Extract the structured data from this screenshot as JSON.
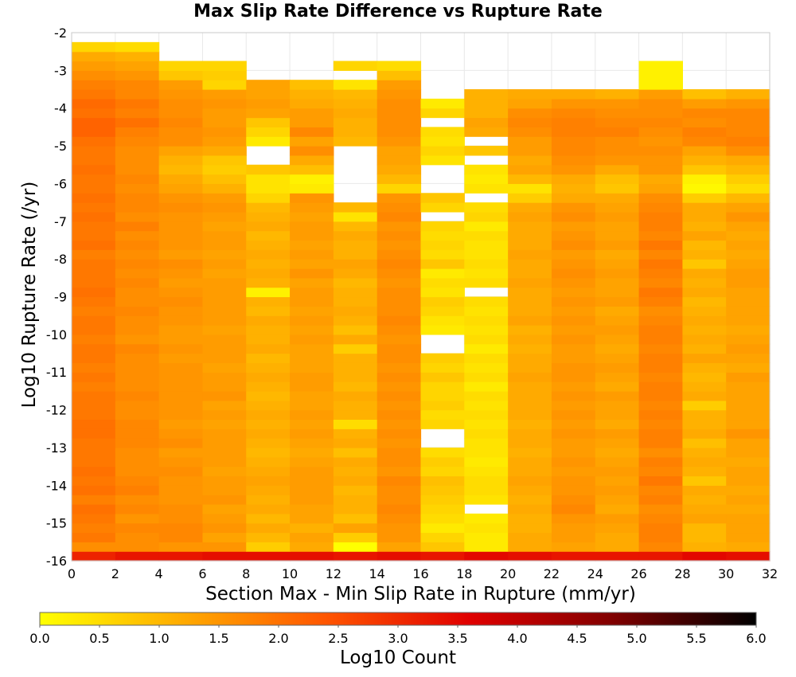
{
  "chart_data": {
    "type": "heatmap",
    "title": "Max Slip Rate Difference vs Rupture Rate",
    "xlabel": "Section Max - Min Slip Rate in Rupture (mm/yr)",
    "ylabel": "Log10 Rupture Rate (/yr)",
    "xlim": [
      0,
      32
    ],
    "ylim": [
      -16,
      -2
    ],
    "x_ticks": [
      0,
      2,
      4,
      6,
      8,
      10,
      12,
      14,
      16,
      18,
      20,
      22,
      24,
      26,
      28,
      30,
      32
    ],
    "y_ticks": [
      -16,
      -15,
      -14,
      -13,
      -12,
      -11,
      -10,
      -9,
      -8,
      -7,
      -6,
      -5,
      -4,
      -3,
      -2
    ],
    "x_bin_width": 2,
    "y_bin_width": 0.25,
    "y_bins_start": -16,
    "colorbar": {
      "label": "Log10 Count",
      "range": [
        0,
        6
      ],
      "ticks": [
        "0.0",
        "0.5",
        "1.0",
        "1.5",
        "2.0",
        "2.5",
        "3.0",
        "3.5",
        "4.0",
        "4.5",
        "5.0",
        "5.5",
        "6.0"
      ],
      "colors": [
        "#ffff00",
        "#ffaa00",
        "#ff5500",
        "#e00000",
        "#800000",
        "#000000"
      ]
    },
    "grid": true,
    "values": [
      [
        3.1,
        3.3,
        3.3,
        3.4,
        3.4,
        3.4,
        3.3,
        3.4,
        3.3,
        3.5,
        3.4,
        3.3,
        3.3,
        3.3,
        3.5,
        3.4
      ],
      [
        1.6,
        1.6,
        1.5,
        1.5,
        0.7,
        1.2,
        0.0,
        1.3,
        0.8,
        0.3,
        1.2,
        1.3,
        1.2,
        1.7,
        1.1,
        1.2
      ],
      [
        1.9,
        1.6,
        1.7,
        1.3,
        1.0,
        1.3,
        0.7,
        1.5,
        0.6,
        0.3,
        1.2,
        1.4,
        1.2,
        1.8,
        1.0,
        1.3
      ],
      [
        1.8,
        1.7,
        1.7,
        1.5,
        1.2,
        1.1,
        1.3,
        1.5,
        0.3,
        0.4,
        1.1,
        1.4,
        1.3,
        1.8,
        1.0,
        1.3
      ],
      [
        1.9,
        1.5,
        1.6,
        1.4,
        1.0,
        1.3,
        0.9,
        1.6,
        0.5,
        0.3,
        1.1,
        1.5,
        1.4,
        1.7,
        1.3,
        1.3
      ],
      [
        2.0,
        1.7,
        1.6,
        1.3,
        1.2,
        1.3,
        1.1,
        1.7,
        0.6,
        null,
        1.2,
        1.7,
        1.2,
        1.6,
        1.2,
        1.2
      ],
      [
        1.8,
        1.6,
        1.5,
        1.5,
        1.1,
        1.4,
        1.1,
        1.6,
        0.7,
        0.4,
        1.1,
        1.6,
        1.3,
        1.8,
        1.1,
        1.3
      ],
      [
        2.0,
        1.8,
        1.5,
        1.4,
        1.2,
        1.4,
        1.0,
        1.6,
        0.8,
        0.5,
        1.2,
        1.5,
        1.4,
        1.7,
        1.2,
        1.2
      ],
      [
        1.9,
        1.7,
        1.5,
        1.4,
        1.3,
        1.4,
        1.2,
        1.7,
        0.9,
        0.5,
        1.3,
        1.5,
        1.3,
        1.9,
        0.8,
        1.3
      ],
      [
        2.0,
        1.6,
        1.6,
        1.3,
        1.2,
        1.4,
        1.1,
        1.5,
        0.6,
        0.4,
        1.2,
        1.4,
        1.4,
        1.7,
        1.1,
        1.3
      ],
      [
        1.9,
        1.6,
        1.5,
        1.4,
        1.1,
        1.3,
        1.2,
        1.6,
        0.7,
        0.3,
        1.2,
        1.5,
        1.3,
        1.8,
        1.2,
        1.2
      ],
      [
        1.9,
        1.6,
        1.4,
        1.4,
        1.0,
        1.2,
        0.9,
        1.6,
        0.5,
        0.4,
        1.1,
        1.4,
        1.2,
        1.6,
        1.1,
        1.3
      ],
      [
        1.9,
        1.7,
        1.6,
        1.4,
        1.1,
        1.3,
        1.2,
        1.5,
        null,
        0.4,
        1.2,
        1.4,
        1.3,
        1.8,
        0.9,
        1.3
      ],
      [
        2.0,
        1.7,
        1.5,
        1.4,
        1.2,
        1.4,
        1.1,
        1.6,
        null,
        0.5,
        1.2,
        1.5,
        1.4,
        1.8,
        1.2,
        1.5
      ],
      [
        2.0,
        1.7,
        1.4,
        1.3,
        1.1,
        1.3,
        0.5,
        1.5,
        0.6,
        0.4,
        1.1,
        1.4,
        1.2,
        1.7,
        1.1,
        1.3
      ],
      [
        1.9,
        1.6,
        1.5,
        1.4,
        1.2,
        1.4,
        1.1,
        1.6,
        0.5,
        0.5,
        1.2,
        1.5,
        1.3,
        1.8,
        1.1,
        1.3
      ],
      [
        1.9,
        1.6,
        1.5,
        1.3,
        1.1,
        1.3,
        1.1,
        1.5,
        0.7,
        0.4,
        1.2,
        1.4,
        1.3,
        1.7,
        0.7,
        1.3
      ],
      [
        1.9,
        1.7,
        1.5,
        1.5,
        1.0,
        1.3,
        1.2,
        1.6,
        0.6,
        0.5,
        1.2,
        1.5,
        1.4,
        1.8,
        1.2,
        1.3
      ],
      [
        1.8,
        1.6,
        1.5,
        1.4,
        1.1,
        1.4,
        1.0,
        1.5,
        0.6,
        0.3,
        1.2,
        1.4,
        1.2,
        1.8,
        1.1,
        1.3
      ],
      [
        1.9,
        1.6,
        1.5,
        1.4,
        1.2,
        1.4,
        1.1,
        1.6,
        0.8,
        0.5,
        1.3,
        1.5,
        1.3,
        1.7,
        1.0,
        1.4
      ],
      [
        1.8,
        1.6,
        1.5,
        1.3,
        1.1,
        1.3,
        1.1,
        1.5,
        0.6,
        0.4,
        1.2,
        1.5,
        1.4,
        1.8,
        1.1,
        1.2
      ],
      [
        1.9,
        1.6,
        1.4,
        1.4,
        1.0,
        1.3,
        1.1,
        1.6,
        0.7,
        0.5,
        1.2,
        1.4,
        1.3,
        1.8,
        1.3,
        1.3
      ],
      [
        1.9,
        1.7,
        1.5,
        1.4,
        1.2,
        1.3,
        0.7,
        1.6,
        null,
        0.3,
        1.1,
        1.4,
        1.2,
        1.7,
        1.1,
        1.4
      ],
      [
        1.8,
        1.5,
        1.4,
        1.4,
        1.1,
        1.4,
        1.2,
        1.5,
        null,
        0.5,
        1.2,
        1.5,
        1.3,
        1.8,
        1.2,
        1.3
      ],
      [
        1.9,
        1.6,
        1.4,
        1.3,
        1.1,
        1.3,
        0.9,
        1.6,
        0.3,
        0.4,
        1.1,
        1.4,
        1.4,
        1.8,
        1.1,
        1.2
      ],
      [
        1.9,
        1.6,
        1.5,
        1.4,
        1.2,
        1.4,
        1.1,
        1.7,
        0.4,
        0.5,
        1.3,
        1.5,
        1.3,
        1.7,
        1.2,
        1.3
      ],
      [
        1.8,
        1.7,
        1.5,
        1.4,
        1.0,
        1.3,
        1.2,
        1.6,
        0.6,
        0.4,
        1.2,
        1.4,
        1.2,
        1.6,
        1.1,
        1.3
      ],
      [
        1.9,
        1.6,
        1.6,
        1.4,
        1.1,
        1.4,
        1.1,
        1.6,
        0.7,
        0.5,
        1.2,
        1.5,
        1.4,
        1.8,
        1.0,
        1.3
      ],
      [
        2.0,
        1.6,
        1.5,
        1.4,
        0.2,
        1.4,
        1.1,
        1.6,
        0.4,
        null,
        1.2,
        1.4,
        1.3,
        1.9,
        1.2,
        1.3
      ],
      [
        1.9,
        1.7,
        1.4,
        1.4,
        1.1,
        1.3,
        1.0,
        1.5,
        0.5,
        0.5,
        1.3,
        1.5,
        1.3,
        1.7,
        1.1,
        1.4
      ],
      [
        1.9,
        1.6,
        1.5,
        1.3,
        1.2,
        1.5,
        1.2,
        1.6,
        0.3,
        0.4,
        1.2,
        1.6,
        1.4,
        1.8,
        1.2,
        1.4
      ],
      [
        1.9,
        1.7,
        1.6,
        1.4,
        1.1,
        1.3,
        1.3,
        1.7,
        0.8,
        0.5,
        1.2,
        1.5,
        1.3,
        1.9,
        0.8,
        1.3
      ],
      [
        1.8,
        1.6,
        1.4,
        1.3,
        1.2,
        1.4,
        1.1,
        1.6,
        0.5,
        0.4,
        1.3,
        1.4,
        1.2,
        1.7,
        1.1,
        1.2
      ],
      [
        2.0,
        1.7,
        1.5,
        1.4,
        1.1,
        1.3,
        1.1,
        1.5,
        0.6,
        0.4,
        1.2,
        1.6,
        1.4,
        1.9,
        1.0,
        1.3
      ],
      [
        1.9,
        1.6,
        1.5,
        1.4,
        1.0,
        1.4,
        1.2,
        1.6,
        0.5,
        0.5,
        1.2,
        1.5,
        1.3,
        1.7,
        1.3,
        1.2
      ],
      [
        1.9,
        1.8,
        1.5,
        1.3,
        1.2,
        1.4,
        1.0,
        1.5,
        0.6,
        0.3,
        1.2,
        1.4,
        1.3,
        1.8,
        1.1,
        1.3
      ],
      [
        2.0,
        1.6,
        1.5,
        1.4,
        1.1,
        1.3,
        0.4,
        1.7,
        null,
        0.6,
        1.3,
        1.6,
        1.4,
        1.8,
        1.2,
        1.5
      ],
      [
        1.9,
        1.7,
        1.6,
        1.5,
        1.0,
        1.4,
        1.0,
        1.6,
        0.6,
        0.5,
        1.2,
        1.5,
        1.3,
        1.7,
        1.2,
        1.3
      ],
      [
        2.0,
        1.7,
        1.5,
        1.4,
        0.6,
        1.5,
        null,
        1.5,
        0.8,
        null,
        0.7,
        1.2,
        1.2,
        1.6,
        0.7,
        1.0
      ],
      [
        1.9,
        1.6,
        1.3,
        1.1,
        0.4,
        0.3,
        null,
        0.6,
        null,
        0.4,
        0.4,
        1.1,
        0.8,
        1.3,
        0.1,
        0.5
      ],
      [
        1.9,
        1.7,
        1.2,
        0.9,
        0.4,
        0.2,
        null,
        1.0,
        null,
        0.3,
        1.0,
        1.2,
        0.9,
        1.2,
        0.2,
        0.7
      ],
      [
        2.0,
        1.6,
        1.0,
        0.7,
        0.8,
        0.9,
        null,
        1.2,
        null,
        0.4,
        1.3,
        1.5,
        1.2,
        1.5,
        0.8,
        1.0
      ],
      [
        1.9,
        1.6,
        1.1,
        0.8,
        null,
        1.2,
        null,
        1.3,
        0.4,
        null,
        1.2,
        1.6,
        1.5,
        1.5,
        1.1,
        1.2
      ],
      [
        1.9,
        1.6,
        1.3,
        1.2,
        null,
        1.6,
        null,
        1.3,
        0.6,
        0.8,
        1.4,
        1.7,
        1.6,
        1.6,
        1.3,
        1.6
      ],
      [
        2.0,
        1.7,
        1.6,
        1.4,
        0.3,
        1.3,
        1.0,
        1.5,
        0.4,
        null,
        1.4,
        1.7,
        1.6,
        1.5,
        1.7,
        1.8
      ],
      [
        2.2,
        1.8,
        1.6,
        1.5,
        0.6,
        1.7,
        1.1,
        1.6,
        0.5,
        1.2,
        1.6,
        1.8,
        1.8,
        1.6,
        1.8,
        1.7
      ],
      [
        2.2,
        2.0,
        1.7,
        1.4,
        0.8,
        1.4,
        1.1,
        1.6,
        null,
        1.3,
        1.7,
        1.8,
        1.7,
        1.7,
        1.6,
        1.7
      ],
      [
        2.0,
        1.8,
        1.6,
        1.4,
        1.3,
        1.4,
        1.2,
        1.6,
        0.6,
        1.1,
        1.6,
        1.7,
        1.6,
        1.6,
        1.7,
        1.7
      ],
      [
        2.1,
        1.9,
        1.6,
        1.5,
        1.4,
        1.2,
        1.1,
        1.6,
        0.3,
        1.1,
        1.3,
        1.5,
        1.5,
        1.6,
        1.4,
        1.5
      ],
      [
        1.9,
        1.7,
        1.5,
        1.4,
        1.3,
        1.1,
        1.0,
        1.5,
        null,
        1.1,
        1.2,
        1.2,
        1.1,
        1.4,
        0.9,
        1.1
      ],
      [
        1.8,
        1.7,
        1.4,
        0.6,
        1.3,
        0.9,
        0.4,
        1.4,
        null,
        null,
        null,
        null,
        null,
        0.2,
        null,
        null
      ],
      [
        1.6,
        1.5,
        0.8,
        0.7,
        null,
        null,
        null,
        0.9,
        null,
        null,
        null,
        null,
        null,
        0.2,
        null,
        null
      ],
      [
        1.4,
        1.3,
        0.6,
        0.6,
        null,
        null,
        0.6,
        0.5,
        null,
        null,
        null,
        null,
        null,
        0.2,
        null,
        null
      ],
      [
        1.2,
        1.1,
        null,
        null,
        null,
        null,
        null,
        null,
        null,
        null,
        null,
        null,
        null,
        null,
        null,
        null
      ],
      [
        0.6,
        0.5,
        null,
        null,
        null,
        null,
        null,
        null,
        null,
        null,
        null,
        null,
        null,
        null,
        null,
        null
      ]
    ]
  }
}
